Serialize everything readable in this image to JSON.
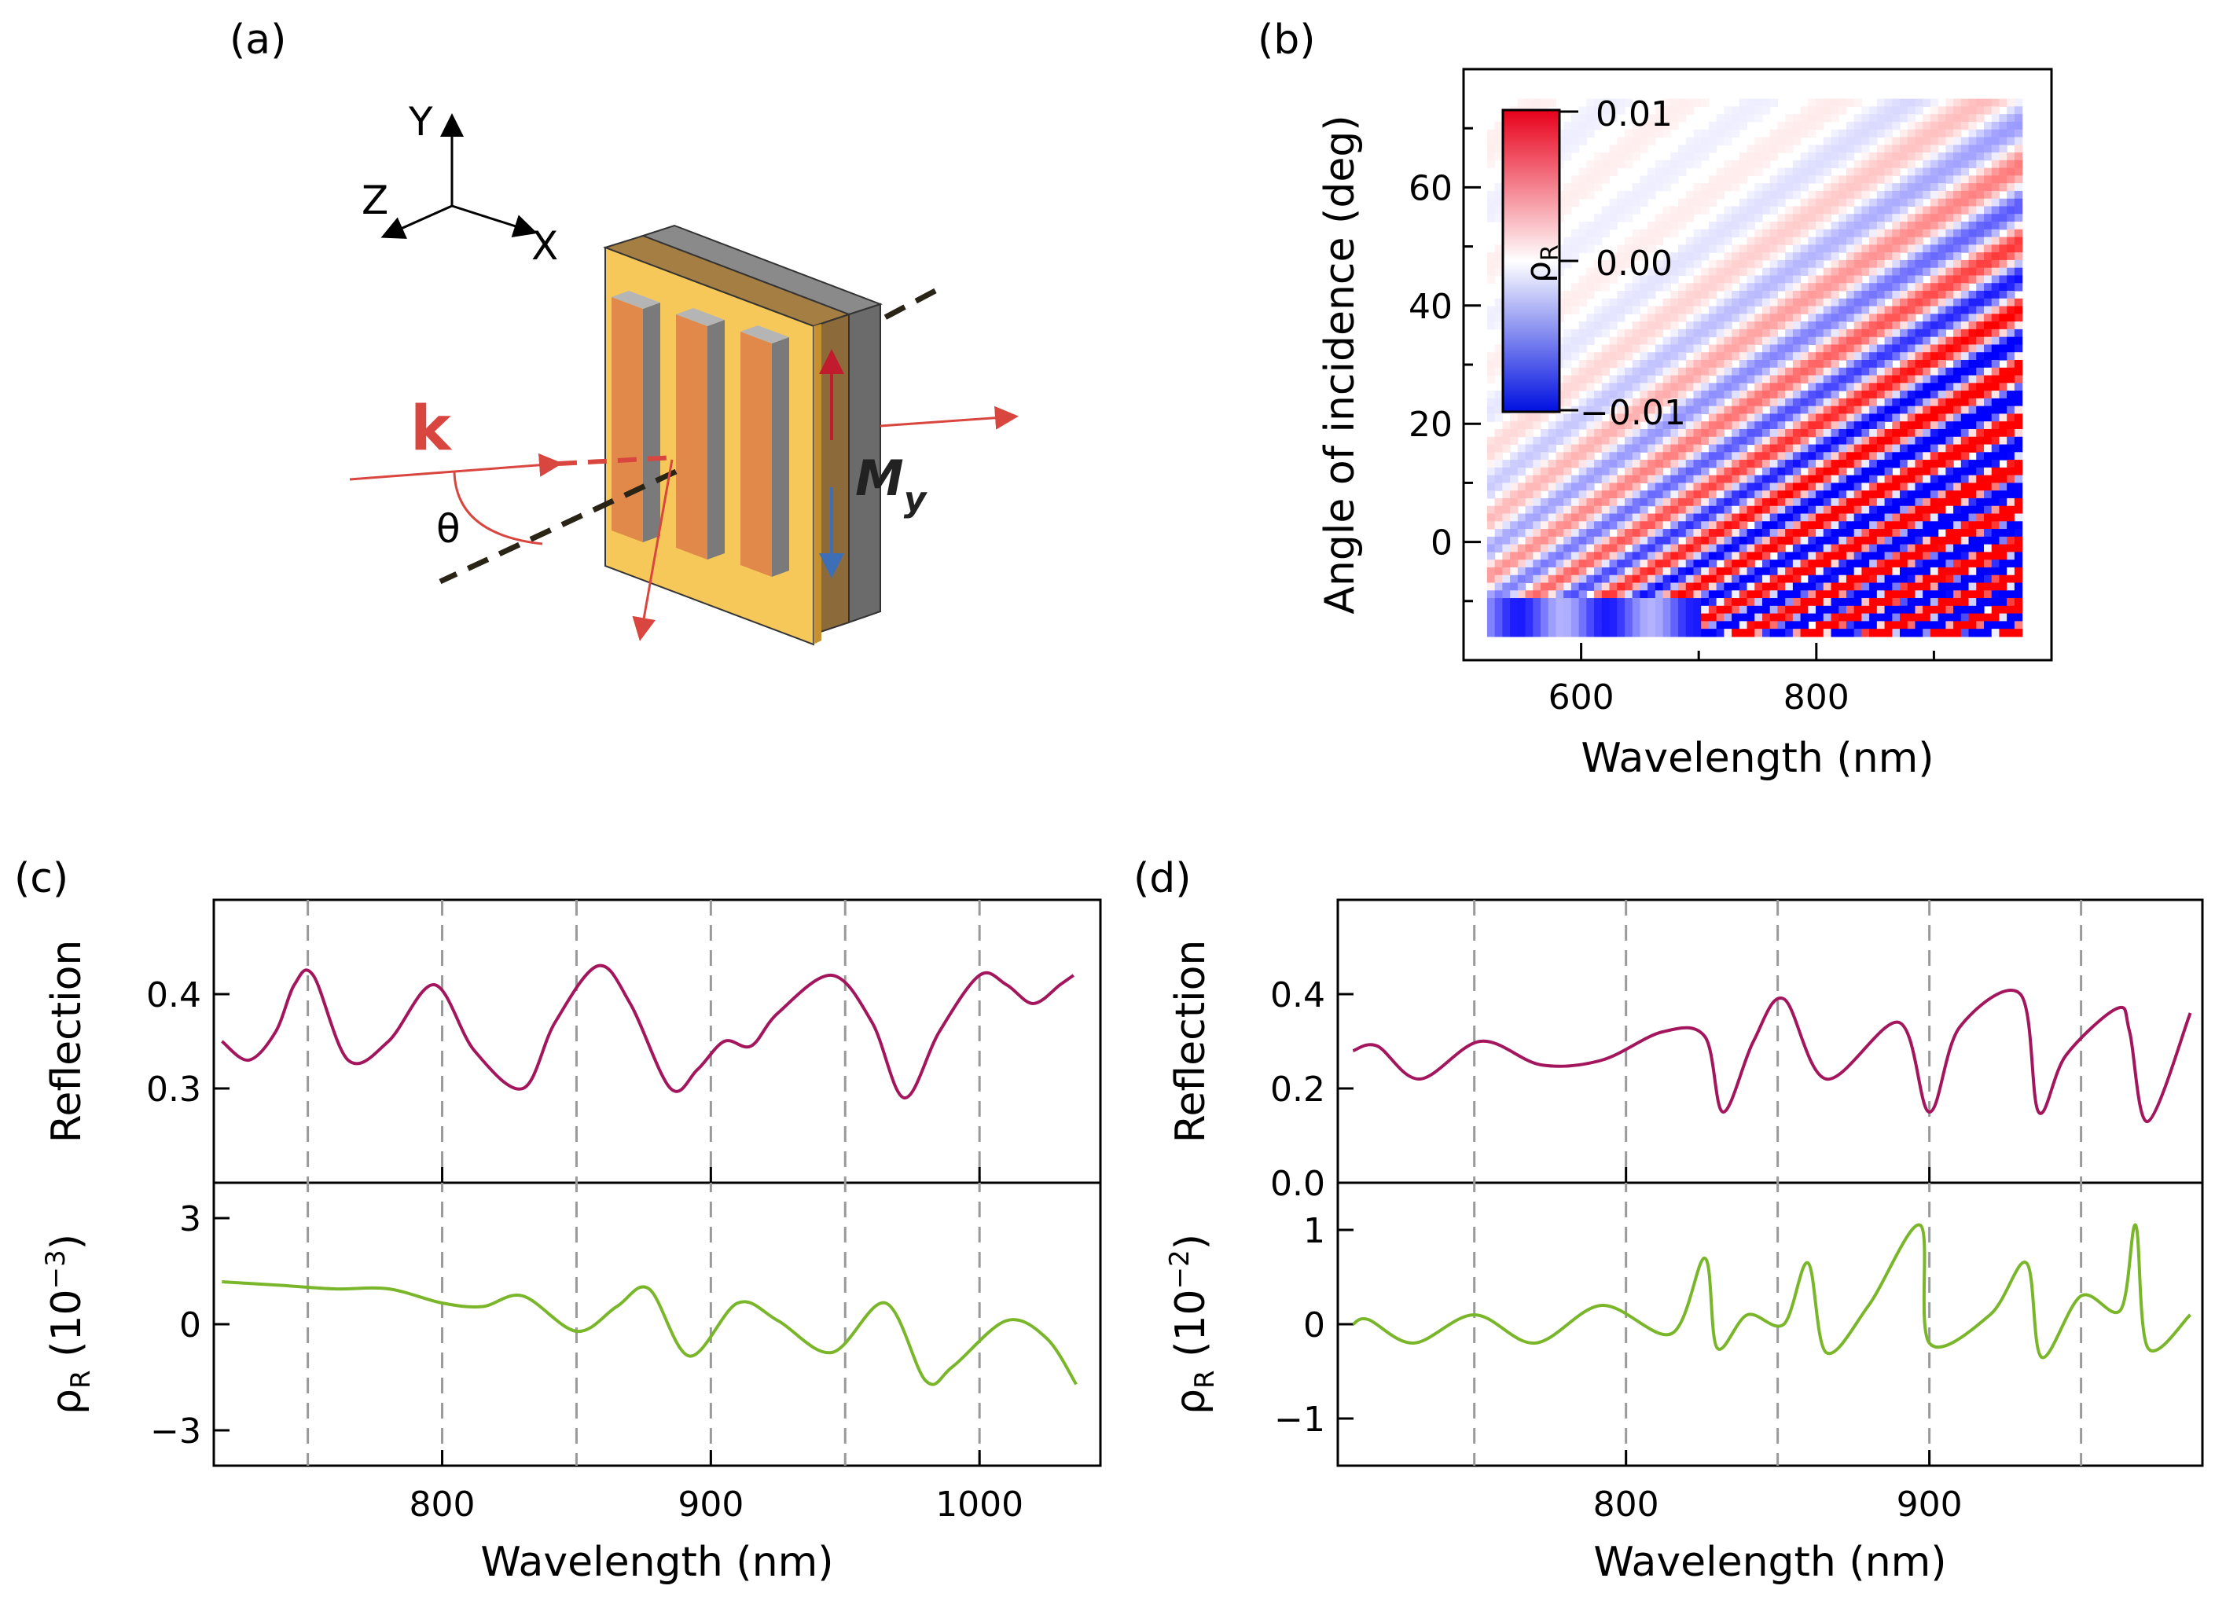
{
  "figure": {
    "panel_labels": [
      "(a)",
      "(b)",
      "(c)",
      "(d)"
    ]
  },
  "schematic": {
    "axis_labels": [
      "Y",
      "Z",
      "X"
    ],
    "wavevector_label": "k",
    "angle_label": "θ",
    "magnetization_label": "M",
    "magnetization_subscript": "y",
    "colors": {
      "substrate": "#f6c85a",
      "film": "#8d6a3a",
      "magnet_layer": "#6b6b6b",
      "bars": "#e0894a",
      "beam": "#d9463f",
      "down_arrow": "#3d6fb6",
      "up_arrow": "#c11c2d"
    }
  },
  "chart_data": [
    {
      "panel": "(b)",
      "type": "heatmap",
      "xlabel": "Wavelength (nm)",
      "ylabel": "Angle of incidence (deg)",
      "xlim": [
        500,
        1000
      ],
      "ylim": [
        -20,
        80
      ],
      "xticks": [
        600,
        800
      ],
      "yticks": [
        0,
        20,
        40,
        60
      ],
      "colorbar": {
        "label": "ρ",
        "label_sub": "R",
        "ticks": [
          "0.01",
          "0.00",
          "−0.01"
        ],
        "range": [
          -0.01,
          0.01
        ]
      }
    },
    {
      "panel": "(c)",
      "type": "line",
      "xlabel": "Wavelength (nm)",
      "xlim": [
        715,
        1045
      ],
      "xticks": [
        800,
        900,
        1000
      ],
      "gridlines_x": [
        750,
        800,
        850,
        900,
        950,
        1000
      ],
      "top": {
        "ylabel": "Reflection",
        "ylim": [
          0.2,
          0.5
        ],
        "yticks": [
          "0.3",
          "0.4"
        ],
        "color": "#a3155c",
        "x": [
          718,
          728,
          738,
          745,
          752,
          765,
          780,
          797,
          812,
          830,
          842,
          858,
          870,
          885,
          895,
          905,
          915,
          925,
          945,
          960,
          972,
          985,
          1000,
          1010,
          1020,
          1030,
          1035
        ],
        "y": [
          0.35,
          0.33,
          0.36,
          0.41,
          0.42,
          0.33,
          0.35,
          0.41,
          0.34,
          0.3,
          0.37,
          0.43,
          0.39,
          0.3,
          0.32,
          0.35,
          0.345,
          0.38,
          0.42,
          0.37,
          0.29,
          0.36,
          0.42,
          0.41,
          0.39,
          0.41,
          0.42
        ]
      },
      "bottom": {
        "ylabel": "ρ",
        "ylabel_sub": "R",
        "ylabel_unit": " (10",
        "ylabel_exp": "−3",
        "ylabel_close": ")",
        "ylim": [
          -4,
          4
        ],
        "yticks": [
          "3",
          "0",
          "−3"
        ],
        "color": "#7ab62a",
        "x": [
          718,
          740,
          760,
          780,
          800,
          815,
          830,
          850,
          865,
          877,
          892,
          910,
          925,
          945,
          965,
          980,
          990,
          1010,
          1025,
          1036
        ],
        "y": [
          1.2,
          1.1,
          1.0,
          1.0,
          0.6,
          0.5,
          0.8,
          -0.2,
          0.5,
          1.0,
          -0.9,
          0.6,
          0.1,
          -0.8,
          0.6,
          -1.6,
          -1.2,
          0.1,
          -0.4,
          -1.7
        ]
      }
    },
    {
      "panel": "(d)",
      "type": "line",
      "xlabel": "Wavelength (nm)",
      "xlim": [
        705,
        990
      ],
      "xticks": [
        800,
        900
      ],
      "gridlines_x": [
        750,
        800,
        850,
        900,
        950
      ],
      "top": {
        "ylabel": "Reflection",
        "ylim": [
          0.0,
          0.6
        ],
        "yticks": [
          "0.0",
          "0.2",
          "0.4"
        ],
        "color": "#a3155c",
        "x": [
          710,
          718,
          732,
          752,
          772,
          792,
          812,
          826,
          832,
          842,
          852,
          866,
          890,
          900,
          910,
          930,
          936,
          945,
          962,
          966,
          972,
          986
        ],
        "y": [
          0.28,
          0.29,
          0.22,
          0.3,
          0.25,
          0.26,
          0.32,
          0.31,
          0.15,
          0.3,
          0.39,
          0.22,
          0.34,
          0.15,
          0.33,
          0.4,
          0.15,
          0.27,
          0.37,
          0.32,
          0.13,
          0.36
        ]
      },
      "bottom": {
        "ylabel": "ρ",
        "ylabel_sub": "R",
        "ylabel_unit": " (10",
        "ylabel_exp": "−2",
        "ylabel_close": ")",
        "ylim": [
          -1.5,
          1.5
        ],
        "yticks": [
          "1",
          "0",
          "−1"
        ],
        "color": "#7ab62a",
        "x": [
          710,
          715,
          730,
          750,
          770,
          792,
          815,
          826,
          830,
          840,
          852,
          860,
          866,
          880,
          897,
          900,
          920,
          932,
          937,
          950,
          963,
          968,
          972,
          986
        ],
        "y": [
          0.0,
          0.05,
          -0.2,
          0.1,
          -0.2,
          0.2,
          -0.1,
          0.7,
          -0.25,
          0.1,
          0.0,
          0.65,
          -0.3,
          0.2,
          1.05,
          -0.2,
          0.1,
          0.65,
          -0.35,
          0.3,
          0.15,
          1.05,
          -0.25,
          0.1
        ]
      }
    }
  ]
}
